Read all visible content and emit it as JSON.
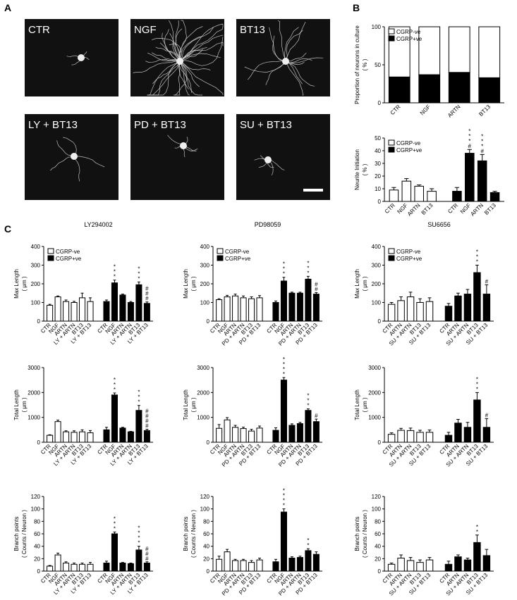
{
  "figure": {
    "panel_labels": [
      "A",
      "B",
      "C"
    ],
    "images": [
      "CTR",
      "NGF",
      "BT13",
      "LY + BT13",
      "PD + BT13",
      "SU + BT13"
    ]
  },
  "chart_data": [
    {
      "type": "stacked_bar",
      "ylabel": [
        "Proportion of neurons in culture",
        "( % )"
      ],
      "categories": [
        "CTR",
        "NGF",
        "ARTN",
        "BT13"
      ],
      "legend": true,
      "series": [
        {
          "name": "CGRP-ve",
          "color": "#ffffff",
          "values": [
            66,
            63,
            60,
            67
          ]
        },
        {
          "name": "CGRP+ve",
          "color": "#000000",
          "values": [
            34,
            37,
            40,
            33
          ],
          "errors": [
            2,
            2,
            2,
            3
          ]
        }
      ],
      "ylim": [
        0,
        100
      ],
      "yticks": [
        0,
        50,
        100
      ]
    },
    {
      "type": "grouped_bar",
      "ylabel": [
        "Neurite Initiation",
        "( % )"
      ],
      "categories": [
        "CTR",
        "NGF",
        "ARTN",
        "BT13"
      ],
      "legend": true,
      "series": [
        {
          "name": "CGRP-ve",
          "color": "#ffffff",
          "values": [
            9,
            16,
            12,
            8
          ],
          "errors": [
            2,
            2,
            1,
            2
          ]
        },
        {
          "name": "CGRP+ve",
          "color": "#000000",
          "values": [
            8,
            38,
            32,
            7
          ],
          "errors": [
            3,
            3,
            5,
            1
          ],
          "annotations": [
            null,
            "***#",
            "***#",
            null
          ]
        }
      ],
      "ylim": [
        0,
        50
      ],
      "yticks": [
        0,
        10,
        20,
        30,
        40,
        50
      ]
    },
    {
      "type": "grouped_bar",
      "title": "LY294002",
      "ylabel": [
        "Max Length",
        "( μm )"
      ],
      "categories": [
        "CTR",
        "NGF",
        "ARTN",
        "LY + ARTN",
        "BT13",
        "LY + BT13"
      ],
      "legend": true,
      "series": [
        {
          "name": "CGRP-ve",
          "color": "#ffffff",
          "values": [
            85,
            130,
            105,
            100,
            125,
            105
          ],
          "errors": [
            5,
            5,
            8,
            6,
            25,
            20
          ]
        },
        {
          "name": "CGRP+ve",
          "color": "#000000",
          "values": [
            105,
            205,
            140,
            100,
            195,
            95
          ],
          "errors": [
            8,
            15,
            5,
            5,
            15,
            8
          ],
          "annotations": [
            null,
            "***",
            null,
            null,
            "***",
            "###"
          ]
        }
      ],
      "ylim": [
        0,
        400
      ],
      "yticks": [
        0,
        100,
        200,
        300,
        400
      ]
    },
    {
      "type": "grouped_bar",
      "title": "PD98059",
      "ylabel": [
        "Max Length",
        "( μm )"
      ],
      "categories": [
        "CTR",
        "NGF",
        "ARTN",
        "PD + ARTN",
        "BT13",
        "PD + BT13"
      ],
      "legend": true,
      "series": [
        {
          "name": "CGRP-ve",
          "color": "#ffffff",
          "values": [
            115,
            130,
            135,
            125,
            120,
            125
          ],
          "errors": [
            5,
            8,
            10,
            10,
            10,
            12
          ]
        },
        {
          "name": "CGRP+ve",
          "color": "#000000",
          "values": [
            100,
            215,
            150,
            150,
            225,
            145
          ],
          "errors": [
            8,
            20,
            5,
            5,
            15,
            8
          ],
          "annotations": [
            null,
            "***",
            null,
            null,
            "***",
            "##"
          ]
        }
      ],
      "ylim": [
        0,
        400
      ],
      "yticks": [
        0,
        100,
        200,
        300,
        400
      ]
    },
    {
      "type": "grouped_bar",
      "title": "SU6656",
      "ylabel": [
        "Max Length",
        "( μm )"
      ],
      "categories": [
        "CTR",
        "ARTN",
        "SU + ARTN",
        "BT13",
        "SU + BT13"
      ],
      "legend": true,
      "series": [
        {
          "name": "CGRP-ve",
          "color": "#ffffff",
          "values": [
            90,
            110,
            130,
            100,
            105
          ],
          "errors": [
            10,
            20,
            25,
            20,
            20
          ]
        },
        {
          "name": "CGRP+ve",
          "color": "#000000",
          "values": [
            80,
            135,
            145,
            260,
            145
          ],
          "errors": [
            15,
            15,
            25,
            40,
            50
          ],
          "annotations": [
            null,
            null,
            null,
            "***",
            "#"
          ]
        }
      ],
      "ylim": [
        0,
        400
      ],
      "yticks": [
        0,
        100,
        200,
        300,
        400
      ]
    },
    {
      "type": "grouped_bar",
      "ylabel": [
        "Total Length",
        "( μm )"
      ],
      "categories": [
        "CTR",
        "NGF",
        "ARTN",
        "LY + ARTN",
        "BT13",
        "LY + BT13"
      ],
      "series": [
        {
          "name": "CGRP-ve",
          "color": "#ffffff",
          "values": [
            280,
            830,
            420,
            400,
            420,
            380
          ],
          "errors": [
            20,
            60,
            40,
            60,
            80,
            90
          ]
        },
        {
          "name": "CGRP+ve",
          "color": "#000000",
          "values": [
            500,
            1900,
            570,
            420,
            1280,
            470
          ],
          "errors": [
            100,
            80,
            30,
            20,
            200,
            50
          ],
          "annotations": [
            null,
            "***",
            null,
            null,
            "***",
            "####"
          ]
        }
      ],
      "ylim": [
        0,
        3000
      ],
      "yticks": [
        0,
        1000,
        2000,
        3000
      ]
    },
    {
      "type": "grouped_bar",
      "ylabel": [
        "Total Length",
        "( μm )"
      ],
      "categories": [
        "CTR",
        "NGF",
        "ARTN",
        "PD + ARTN",
        "BT13",
        "PD + BT13"
      ],
      "series": [
        {
          "name": "CGRP-ve",
          "color": "#ffffff",
          "values": [
            560,
            900,
            600,
            550,
            450,
            570
          ],
          "errors": [
            150,
            90,
            80,
            60,
            70,
            80
          ]
        },
        {
          "name": "CGRP+ve",
          "color": "#000000",
          "values": [
            480,
            2500,
            680,
            750,
            1280,
            830
          ],
          "errors": [
            100,
            100,
            60,
            50,
            60,
            100
          ],
          "annotations": [
            null,
            "****",
            null,
            null,
            "***",
            "#"
          ]
        }
      ],
      "ylim": [
        0,
        3000
      ],
      "yticks": [
        0,
        1000,
        2000,
        3000
      ]
    },
    {
      "type": "grouped_bar",
      "ylabel": [
        "Total Length",
        "( μm )"
      ],
      "categories": [
        "CTR",
        "ARTN",
        "SU + ARTN",
        "BT13",
        "SU + BT13"
      ],
      "series": [
        {
          "name": "CGRP-ve",
          "color": "#ffffff",
          "values": [
            320,
            480,
            470,
            400,
            400
          ],
          "errors": [
            60,
            80,
            100,
            80,
            90
          ]
        },
        {
          "name": "CGRP+ve",
          "color": "#000000",
          "values": [
            280,
            770,
            600,
            1700,
            600
          ],
          "errors": [
            120,
            150,
            200,
            300,
            350
          ],
          "annotations": [
            null,
            null,
            null,
            "***",
            "#"
          ]
        }
      ],
      "ylim": [
        0,
        3000
      ],
      "yticks": [
        0,
        1000,
        2000,
        3000
      ]
    },
    {
      "type": "grouped_bar",
      "ylabel": [
        "Branch points",
        "( Counts / Neuron )"
      ],
      "categories": [
        "CTR",
        "NGF",
        "ARTN",
        "LY + ARTN",
        "BT13",
        "LY + BT13"
      ],
      "series": [
        {
          "name": "CGRP-ve",
          "color": "#ffffff",
          "values": [
            8,
            26,
            13,
            11,
            11,
            11
          ],
          "errors": [
            1,
            3,
            2,
            2,
            2,
            3
          ]
        },
        {
          "name": "CGRP+ve",
          "color": "#000000",
          "values": [
            13,
            60,
            13,
            12,
            34,
            13
          ],
          "errors": [
            3,
            3,
            1,
            1,
            6,
            2
          ],
          "annotations": [
            null,
            "***",
            null,
            null,
            "****",
            "###"
          ]
        }
      ],
      "ylim": [
        0,
        120
      ],
      "yticks": [
        0,
        20,
        40,
        60,
        80,
        100,
        120
      ]
    },
    {
      "type": "grouped_bar",
      "ylabel": [
        "Branch points",
        "( Counts / Neuron )"
      ],
      "categories": [
        "CTR",
        "NGF",
        "ARTN",
        "PD + ARTN",
        "BT13",
        "PD + BT13"
      ],
      "series": [
        {
          "name": "CGRP-ve",
          "color": "#ffffff",
          "values": [
            19,
            31,
            17,
            17,
            14,
            18
          ],
          "errors": [
            5,
            4,
            2,
            2,
            3,
            3
          ]
        },
        {
          "name": "CGRP+ve",
          "color": "#000000",
          "values": [
            15,
            95,
            21,
            22,
            33,
            27
          ],
          "errors": [
            4,
            5,
            2,
            2,
            3,
            4
          ],
          "annotations": [
            null,
            "****",
            null,
            null,
            "**",
            null
          ]
        }
      ],
      "ylim": [
        0,
        120
      ],
      "yticks": [
        0,
        20,
        40,
        60,
        80,
        100,
        120
      ]
    },
    {
      "type": "grouped_bar",
      "ylabel": [
        "Branch points",
        "( Counts / Neuron )"
      ],
      "categories": [
        "CTR",
        "ARTN",
        "SU + ARTN",
        "BT13",
        "SU + BT13"
      ],
      "series": [
        {
          "name": "CGRP-ve",
          "color": "#ffffff",
          "values": [
            11,
            21,
            17,
            14,
            18
          ],
          "errors": [
            2,
            5,
            5,
            4,
            4
          ]
        },
        {
          "name": "CGRP+ve",
          "color": "#000000",
          "values": [
            11,
            23,
            18,
            46,
            25
          ],
          "errors": [
            5,
            3,
            3,
            12,
            10
          ],
          "annotations": [
            null,
            null,
            null,
            "**",
            null
          ]
        }
      ],
      "ylim": [
        0,
        120
      ],
      "yticks": [
        0,
        20,
        40,
        60,
        80,
        100,
        120
      ]
    }
  ]
}
